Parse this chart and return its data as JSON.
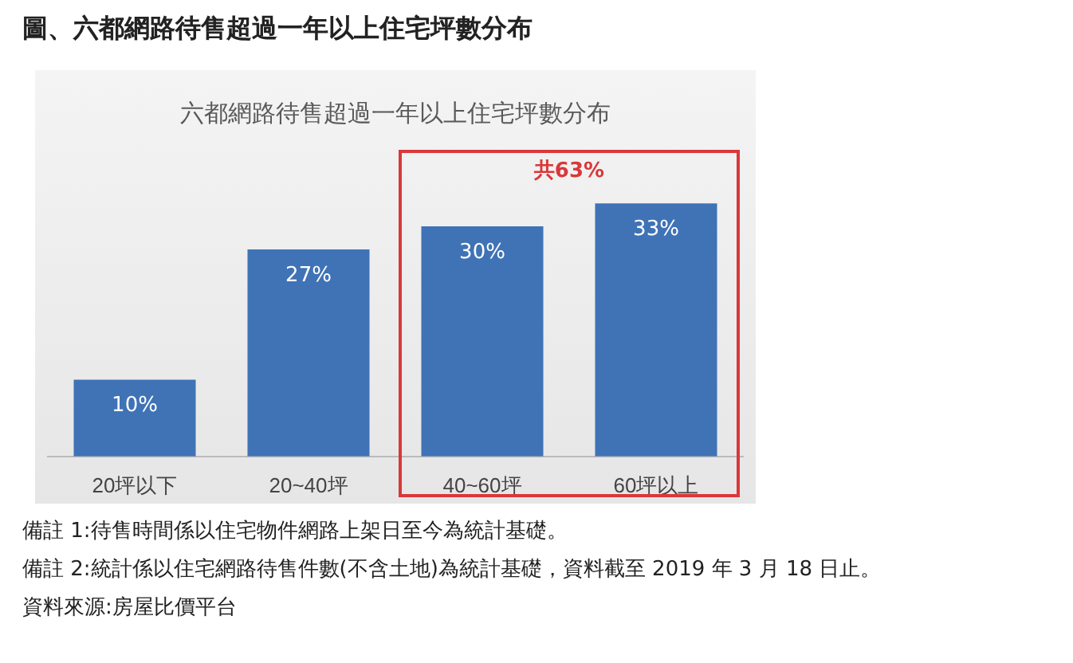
{
  "chart_data": {
    "type": "bar",
    "title": "圖、六都網路待售超過一年以上住宅坪數分布",
    "subtitle": "六都網路待售超過一年以上住宅坪數分布",
    "categories": [
      "20坪以下",
      "20~40坪",
      "40~60坪",
      "60坪以上"
    ],
    "values": [
      10,
      27,
      30,
      33
    ],
    "color": "#3f73b6",
    "value_labels": [
      "10%",
      "27%",
      "30%",
      "33%"
    ],
    "grid": false,
    "legend": false,
    "annotations": [
      "共63%",
      "備註 1:待售時間係以住宅物件網路上架日至今為統計基礎。",
      "備註 2:統計係以住宅網路待售件數(不含土地)為統計基礎，資料截至 2019 年 3 月 18 日止。",
      "資料來源:房屋比價平台"
    ]
  }
}
